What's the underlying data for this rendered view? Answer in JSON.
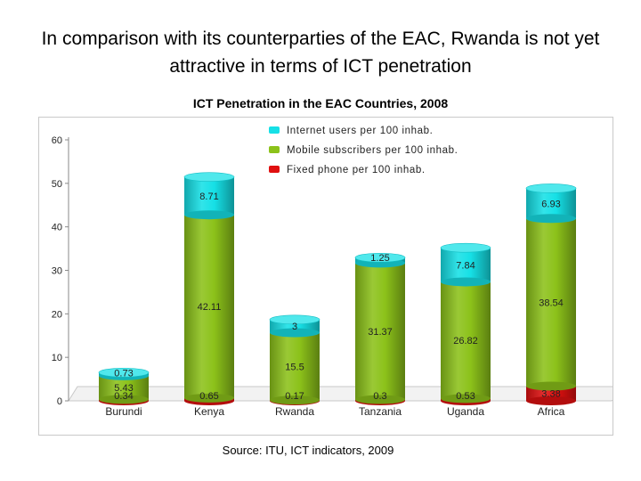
{
  "page": {
    "title": "In comparison with its counterparties of the EAC, Rwanda is not yet attractive in terms of  ICT penetration",
    "source": "Source: ITU, ICT indicators, 2009"
  },
  "chart_data": {
    "type": "bar",
    "stacked": true,
    "title": "ICT Penetration in the EAC Countries, 2008",
    "categories": [
      "Burundi",
      "Kenya",
      "Rwanda",
      "Tanzania",
      "Uganda",
      "Africa"
    ],
    "series": [
      {
        "name": "Fixed phone per 100 inhab.",
        "values": [
          0.34,
          0.65,
          0.17,
          0.3,
          0.53,
          3.38
        ],
        "labels": [
          "0.34",
          "0.65",
          "0.17",
          "0.3",
          "0.53",
          "3.38"
        ],
        "color": "#e01010"
      },
      {
        "name": "Mobile subscribers per 100 inhab.",
        "values": [
          5.43,
          42.11,
          15.5,
          31.37,
          26.82,
          38.54
        ],
        "labels": [
          "5.43",
          "42.11",
          "15.5",
          "31.37",
          "26.82",
          "38.54"
        ],
        "color": "#8cc21a"
      },
      {
        "name": "Internet users per 100 inhab.",
        "values": [
          0.73,
          8.71,
          3,
          1.25,
          7.84,
          6.93
        ],
        "labels": [
          "0.73",
          "8.71",
          "3",
          "1.25",
          "7.84",
          "6.93"
        ],
        "color": "#16e0e6"
      }
    ],
    "legend_order": [
      "Internet users per 100 inhab.",
      "Mobile subscribers per 100 inhab.",
      "Fixed phone per 100 inhab."
    ],
    "ylim": [
      0,
      60
    ],
    "yticks": [
      "0",
      "10",
      "20",
      "30",
      "40",
      "50",
      "60"
    ],
    "xlabel": "",
    "ylabel": "",
    "legend_position": "top-right",
    "grid": false
  }
}
